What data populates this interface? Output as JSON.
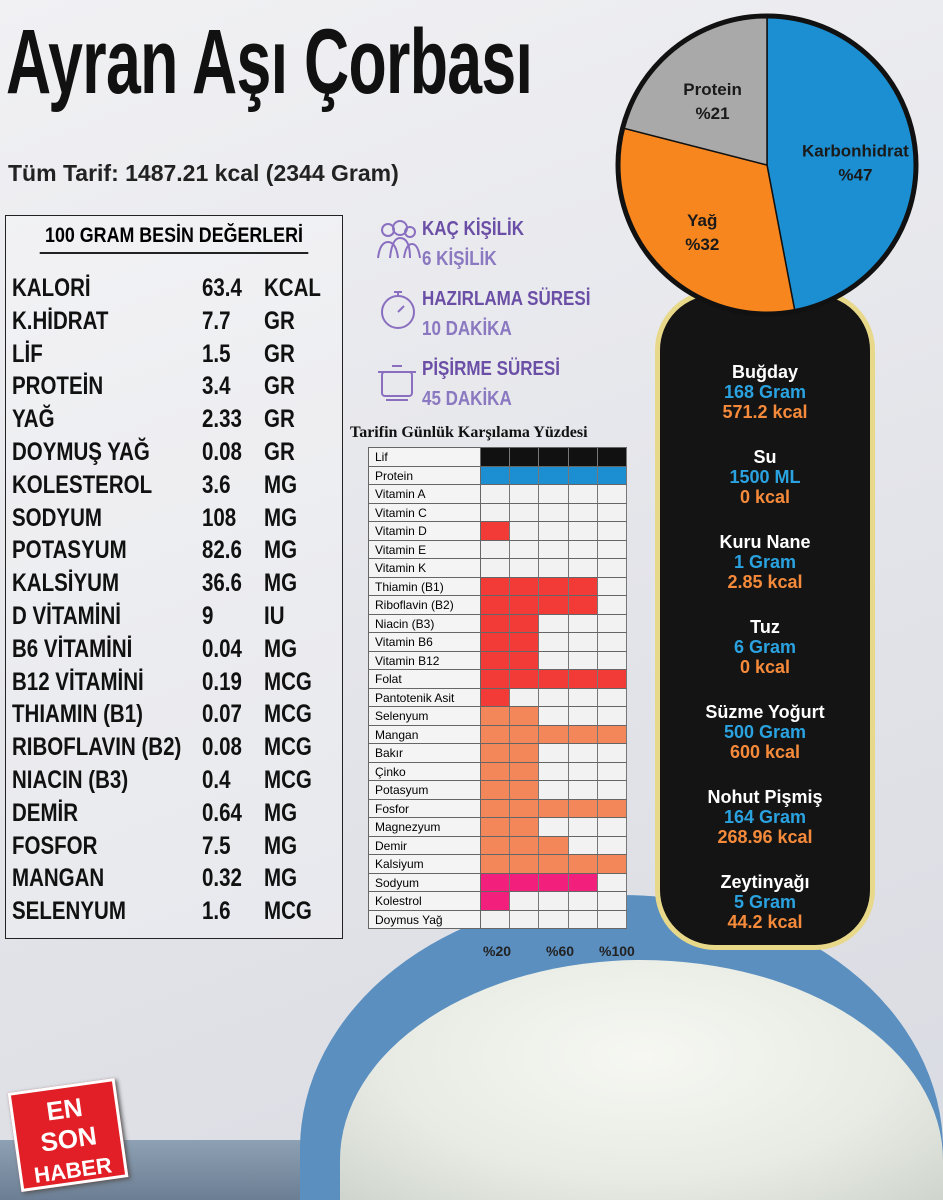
{
  "title": "Ayran Aşı Çorbası",
  "subtitle": "Tüm Tarif: 1487.21 kcal (2344 Gram)",
  "nutrition": {
    "header": "100 GRAM BESİN DEĞERLERİ",
    "rows": [
      [
        "KALORİ",
        "63.4",
        "KCAL"
      ],
      [
        "K.HİDRAT",
        "7.7",
        "GR"
      ],
      [
        "LİF",
        "1.5",
        "GR"
      ],
      [
        "PROTEİN",
        "3.4",
        "GR"
      ],
      [
        "YAĞ",
        "2.33",
        "GR"
      ],
      [
        "DOYMUŞ YAĞ",
        "0.08",
        "GR"
      ],
      [
        "KOLESTEROL",
        "3.6",
        "MG"
      ],
      [
        "SODYUM",
        "108",
        "MG"
      ],
      [
        "POTASYUM",
        "82.6",
        "MG"
      ],
      [
        "KALSİYUM",
        "36.6",
        "MG"
      ],
      [
        "D VİTAMİNİ",
        "9",
        "IU"
      ],
      [
        "B6 VİTAMİNİ",
        "0.04",
        "MG"
      ],
      [
        "B12 VİTAMİNİ",
        "0.19",
        "MCG"
      ],
      [
        "THIAMIN (B1)",
        "0.07",
        "MCG"
      ],
      [
        "RIBOFLAVIN (B2)",
        "0.08",
        "MCG"
      ],
      [
        "NIACIN (B3)",
        "0.4",
        "MCG"
      ],
      [
        "DEMİR",
        "0.64",
        "MG"
      ],
      [
        "FOSFOR",
        "7.5",
        "MG"
      ],
      [
        "MANGAN",
        "0.32",
        "MG"
      ],
      [
        "SELENYUM",
        "1.6",
        "MCG"
      ]
    ]
  },
  "info": [
    {
      "icon": "people-icon",
      "label": "KAÇ KİŞİLİK",
      "value": "6 KİŞİLİK"
    },
    {
      "icon": "stopwatch-icon",
      "label": "HAZIRLAMA SÜRESİ",
      "value": "10 DAKİKA"
    },
    {
      "icon": "pot-icon",
      "label": "PİŞİRME SÜRESİ",
      "value": "45 DAKİKA"
    }
  ],
  "ingredients": [
    {
      "name": "Buğday",
      "amount": "168 Gram",
      "kcal": "571.2 kcal"
    },
    {
      "name": "Su",
      "amount": "1500 ML",
      "kcal": "0 kcal"
    },
    {
      "name": "Kuru Nane",
      "amount": "1 Gram",
      "kcal": "2.85 kcal"
    },
    {
      "name": "Tuz",
      "amount": "6 Gram",
      "kcal": "0 kcal"
    },
    {
      "name": "Süzme Yoğurt",
      "amount": "500 Gram",
      "kcal": "600 kcal"
    },
    {
      "name": "Nohut Pişmiş",
      "amount": "164 Gram",
      "kcal": "268.96 kcal"
    },
    {
      "name": "Zeytinyağı",
      "amount": "5 Gram",
      "kcal": "44.2 kcal"
    }
  ],
  "logo": "EN SON HABER",
  "chart_data": [
    {
      "type": "pie",
      "slices": [
        {
          "label": "Karbonhidrat",
          "display": "%47",
          "value": 47,
          "color": "#1b8fd2"
        },
        {
          "label": "Yağ",
          "display": "%32",
          "value": 32,
          "color": "#f7861f"
        },
        {
          "label": "Protein",
          "display": "%21",
          "value": 21,
          "color": "#a9a9a9"
        }
      ]
    },
    {
      "type": "bar",
      "orientation": "horizontal",
      "title": "Tarifin Günlük Karşılama Yüzdesi",
      "xticks": [
        "%20",
        "%60",
        "%100"
      ],
      "xlim": [
        0,
        100
      ],
      "categories": [
        "Lif",
        "Protein",
        "Vitamin A",
        "Vitamin C",
        "Vitamin D",
        "Vitamin E",
        "Vitamin K",
        "Thiamin (B1)",
        "Riboflavin (B2)",
        "Niacin (B3)",
        "Vitamin B6",
        "Vitamin B12",
        "Folat",
        "Pantotenik Asit",
        "Selenyum",
        "Mangan",
        "Bakır",
        "Çinko",
        "Potasyum",
        "Fosfor",
        "Magnezyum",
        "Demir",
        "Kalsiyum",
        "Sodyum",
        "Kolestrol",
        "Doymus Yağ"
      ],
      "values": [
        100,
        100,
        0,
        0,
        20,
        0,
        0,
        80,
        80,
        40,
        40,
        40,
        100,
        20,
        40,
        100,
        40,
        40,
        40,
        100,
        40,
        60,
        100,
        80,
        20,
        0
      ],
      "colors": [
        "#111111",
        "#1b8fd2",
        "#f23a36",
        "#f23a36",
        "#f23a36",
        "#f23a36",
        "#f23a36",
        "#f23a36",
        "#f23a36",
        "#f23a36",
        "#f23a36",
        "#f23a36",
        "#f23a36",
        "#f23a36",
        "#f4875a",
        "#f4875a",
        "#f4875a",
        "#f4875a",
        "#f4875a",
        "#f4875a",
        "#f4875a",
        "#f4875a",
        "#f4875a",
        "#f2207c",
        "#f2207c",
        "#f2207c"
      ]
    }
  ]
}
